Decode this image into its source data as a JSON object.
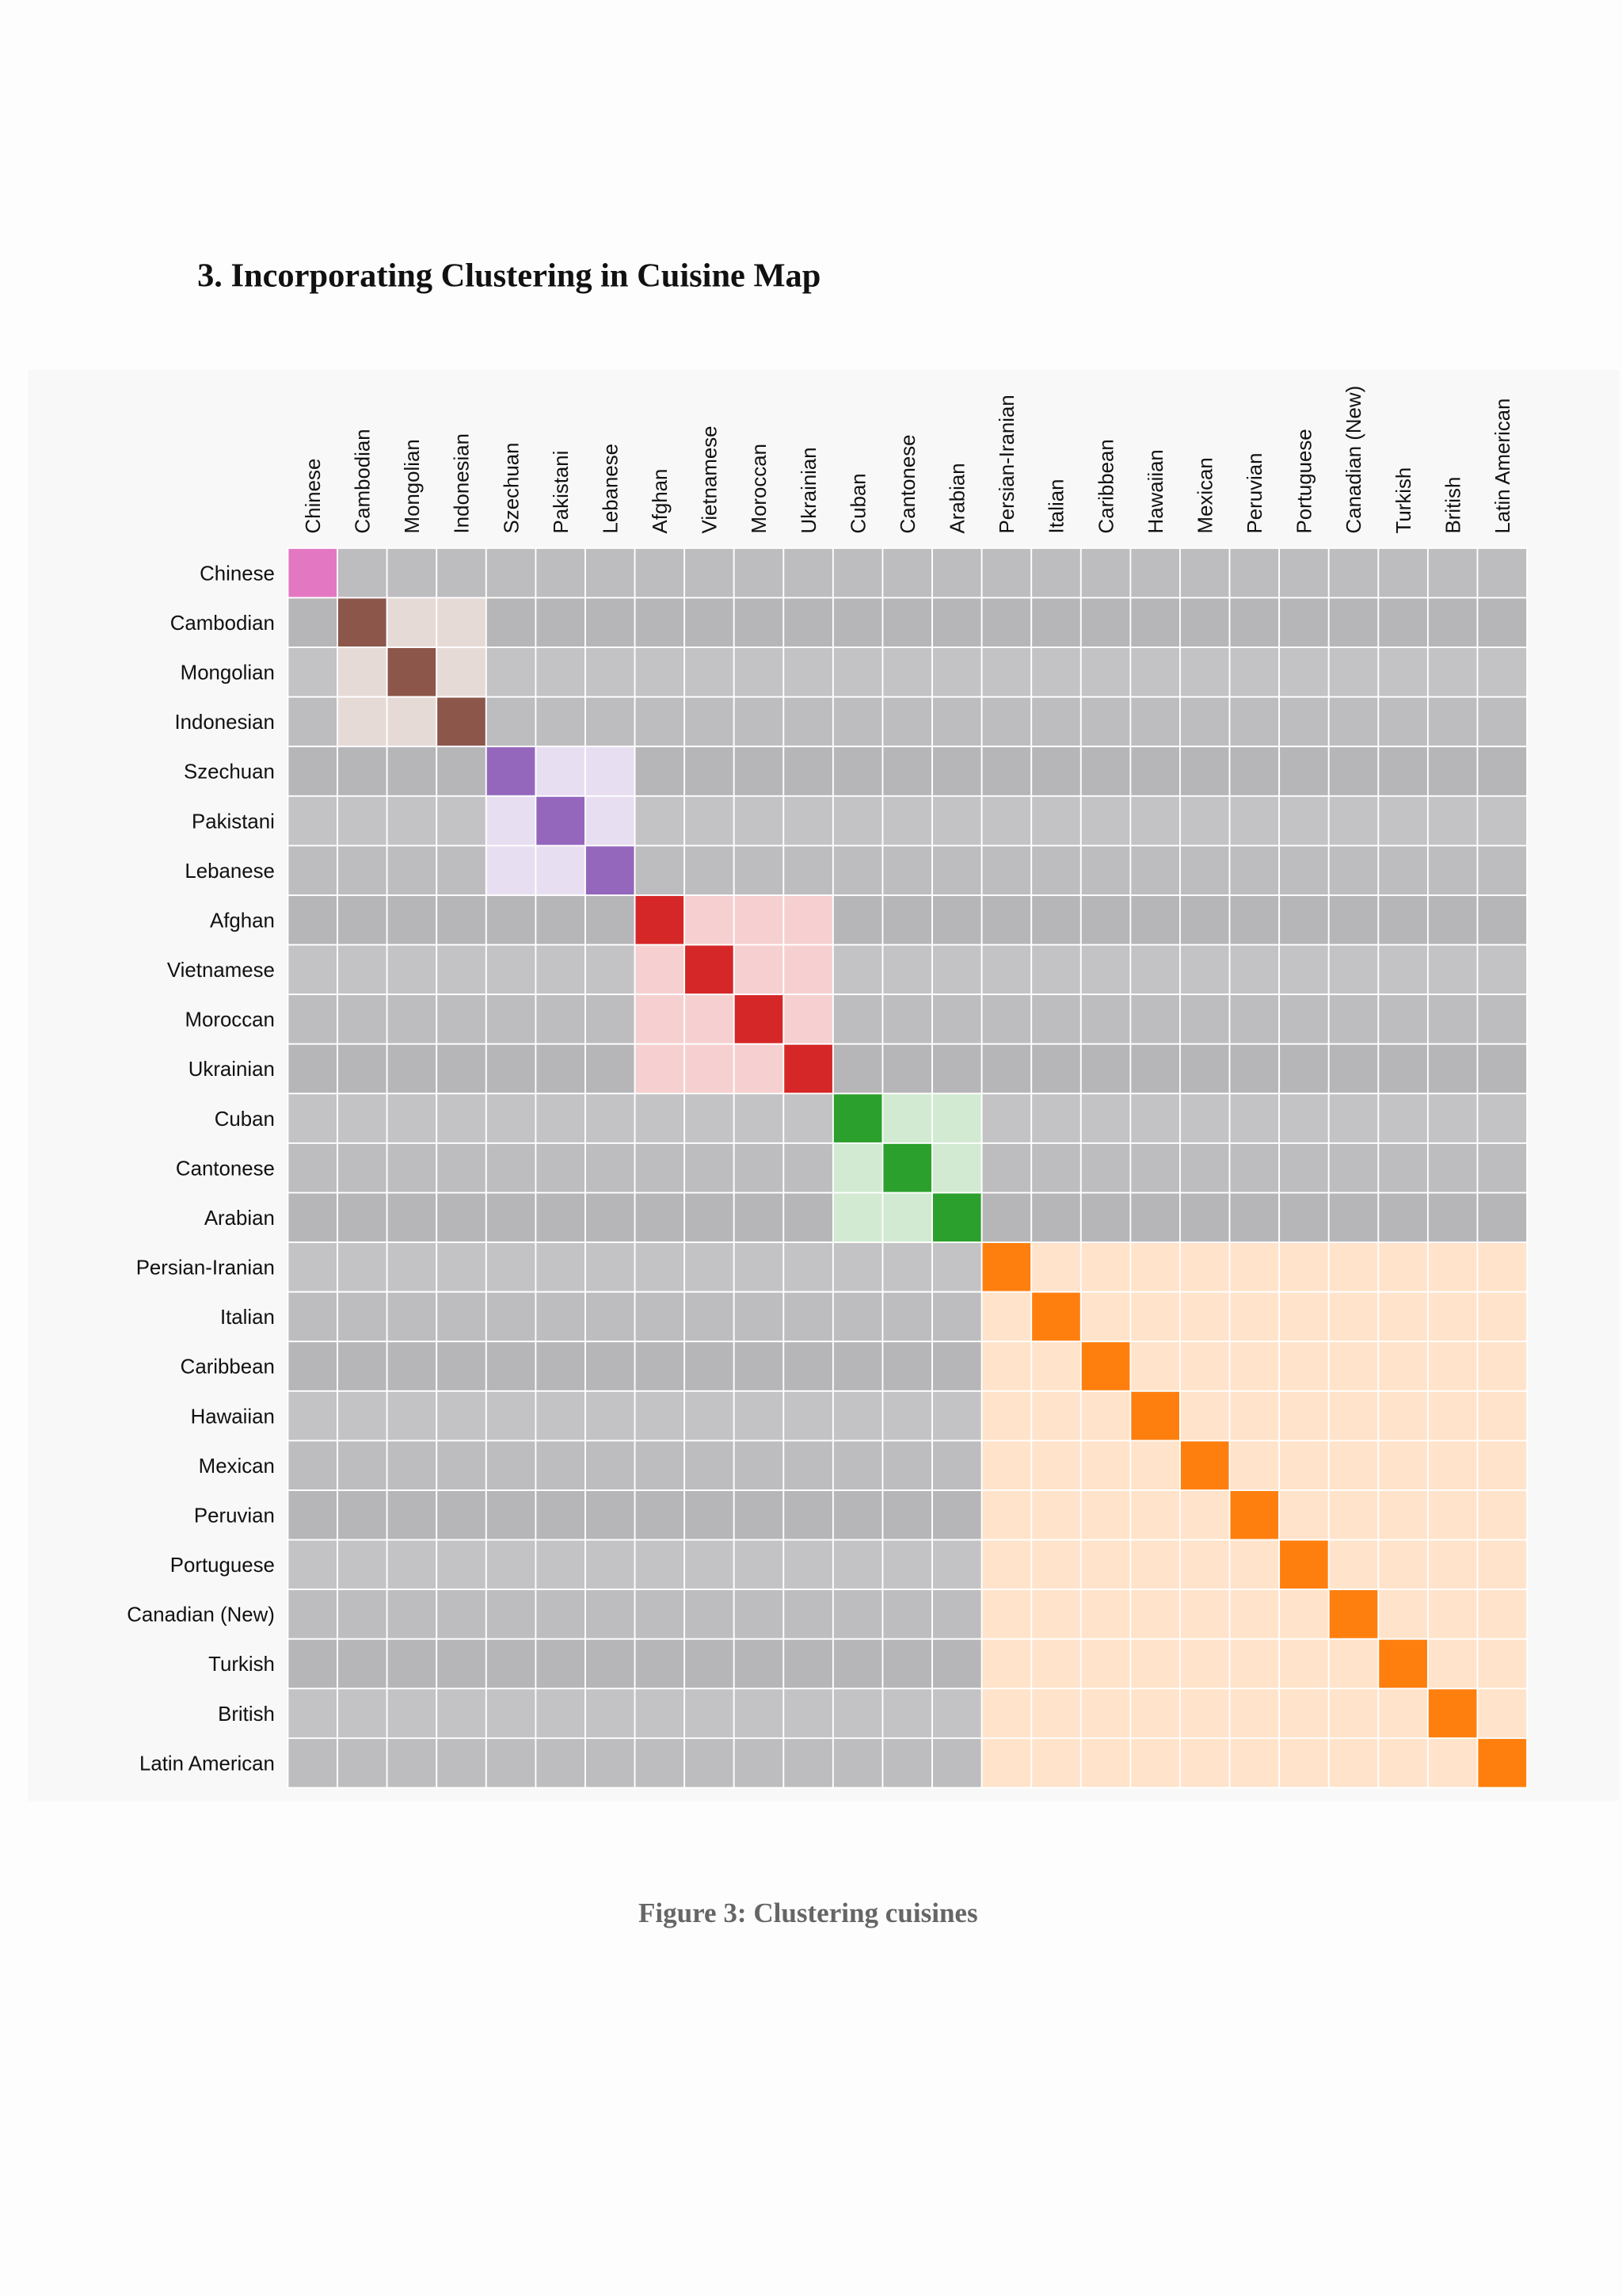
{
  "heading": "3. Incorporating Clustering in Cuisine Map",
  "figure": {
    "cuisines": [
      {
        "name": "Chinese",
        "color": "#e377c2"
      },
      {
        "name": "Cambodian",
        "color": "#8c564b"
      },
      {
        "name": "Mongolian",
        "color": "#8c564b"
      },
      {
        "name": "Indonesian",
        "color": "#8c564b"
      },
      {
        "name": "Szechuan",
        "color": "#9467bd"
      },
      {
        "name": "Pakistani",
        "color": "#9467bd"
      },
      {
        "name": "Lebanese",
        "color": "#9467bd"
      },
      {
        "name": "Afghan",
        "color": "#d62728"
      },
      {
        "name": "Vietnamese",
        "color": "#d62728"
      },
      {
        "name": "Moroccan",
        "color": "#d62728"
      },
      {
        "name": "Ukrainian",
        "color": "#d62728"
      },
      {
        "name": "Cuban",
        "color": "#2ca02c"
      },
      {
        "name": "Cantonese",
        "color": "#2ca02c"
      },
      {
        "name": "Arabian",
        "color": "#2ca02c"
      },
      {
        "name": "Persian-Iranian",
        "color": "#ff7f0e"
      },
      {
        "name": "Italian",
        "color": "#ff7f0e"
      },
      {
        "name": "Caribbean",
        "color": "#ff7f0e"
      },
      {
        "name": "Hawaiian",
        "color": "#ff7f0e"
      },
      {
        "name": "Mexican",
        "color": "#ff7f0e"
      },
      {
        "name": "Peruvian",
        "color": "#ff7f0e"
      },
      {
        "name": "Portuguese",
        "color": "#ff7f0e"
      },
      {
        "name": "Canadian (New)",
        "color": "#ff7f0e"
      },
      {
        "name": "Turkish",
        "color": "#ff7f0e"
      },
      {
        "name": "British",
        "color": "#ff7f0e"
      },
      {
        "name": "Latin American",
        "color": "#ff7f0e"
      }
    ],
    "caption": "Figure 3: Clustering cuisines"
  }
}
